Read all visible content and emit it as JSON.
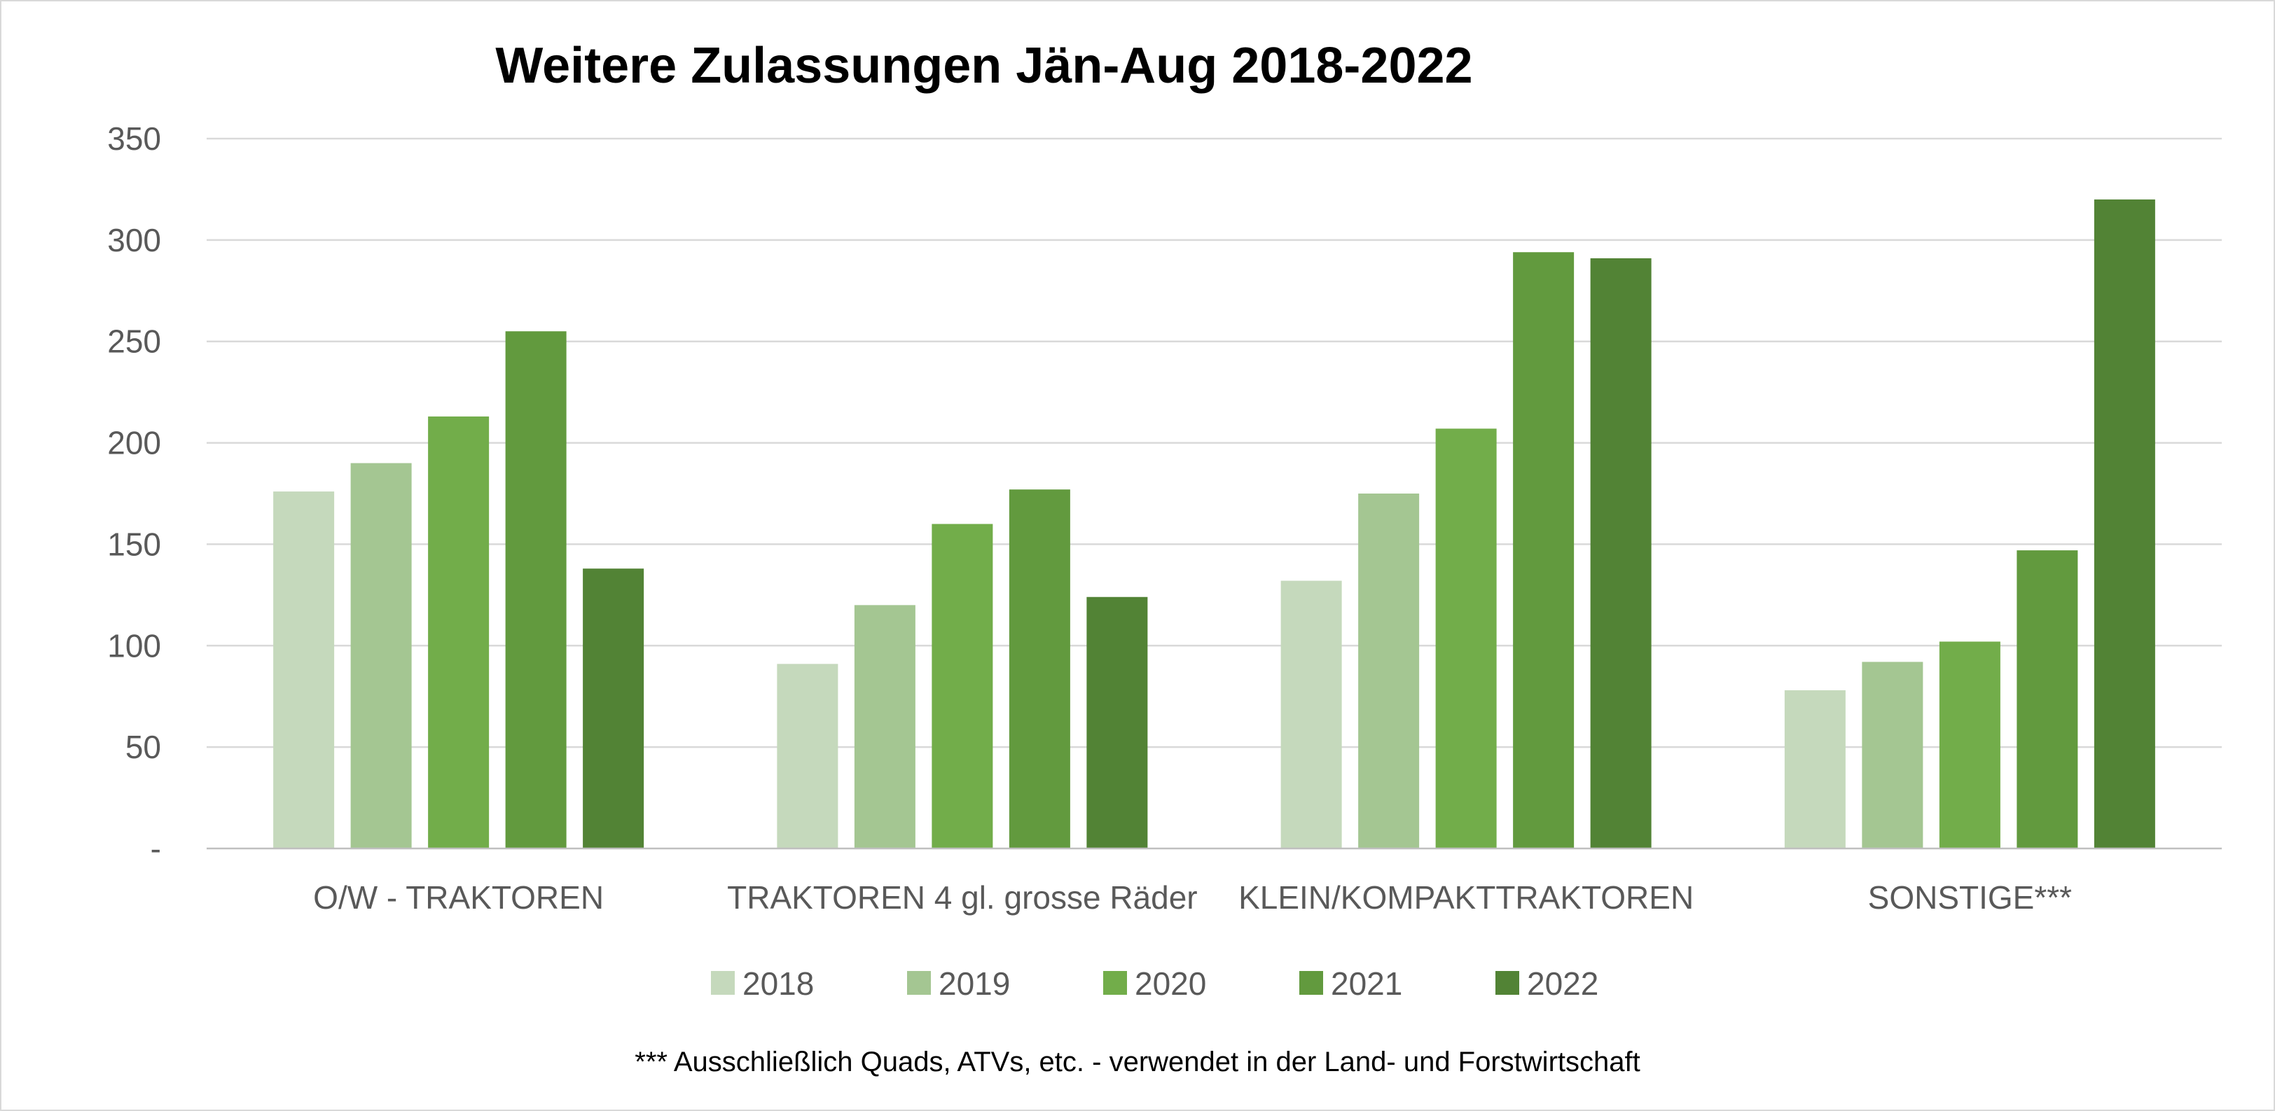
{
  "chart_data": {
    "type": "bar",
    "title": "Weitere Zulassungen Jän-Aug 2018-2022",
    "categories": [
      "O/W - TRAKTOREN",
      "TRAKTOREN 4 gl. grosse Räder",
      "KLEIN/KOMPAKTTRAKTOREN",
      "SONSTIGE***"
    ],
    "series": [
      {
        "name": "2018",
        "color": "#c5d9bc",
        "values": [
          176,
          91,
          132,
          78
        ]
      },
      {
        "name": "2019",
        "color": "#a4c692",
        "values": [
          190,
          120,
          175,
          92
        ]
      },
      {
        "name": "2020",
        "color": "#72ad4a",
        "values": [
          213,
          160,
          207,
          102
        ]
      },
      {
        "name": "2021",
        "color": "#629a3e",
        "values": [
          255,
          177,
          294,
          147
        ]
      },
      {
        "name": "2022",
        "color": "#528335",
        "values": [
          138,
          124,
          291,
          320
        ]
      }
    ],
    "ylim": [
      0,
      350
    ],
    "yticks": [
      {
        "value": 0,
        "label": "-"
      },
      {
        "value": 50,
        "label": "50"
      },
      {
        "value": 100,
        "label": "100"
      },
      {
        "value": 150,
        "label": "150"
      },
      {
        "value": 200,
        "label": "200"
      },
      {
        "value": 250,
        "label": "250"
      },
      {
        "value": 300,
        "label": "300"
      },
      {
        "value": 350,
        "label": "350"
      }
    ],
    "xlabel": "",
    "ylabel": "",
    "grid": true,
    "legend_position": "bottom",
    "footnote": "*** Ausschließlich Quads, ATVs, etc. - verwendet in der Land- und Forstwirtschaft"
  }
}
